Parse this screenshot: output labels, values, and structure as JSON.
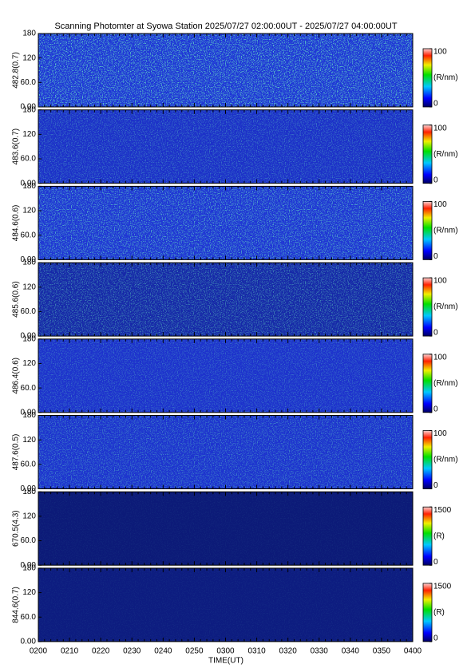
{
  "chart_data": {
    "type": "heatmap",
    "title": "Scanning Photomter at Syowa Station 2025/07/27 02:00:00UT - 2025/07/27 04:00:00UT",
    "xlabel": "TIME(UT)",
    "xticks": [
      "0200",
      "0210",
      "0220",
      "0230",
      "0240",
      "0250",
      "0300",
      "0310",
      "0320",
      "0330",
      "0340",
      "0350",
      "0400"
    ],
    "panels": [
      {
        "ylabel": "482.8(0.7)",
        "ylim": [
          0,
          180
        ],
        "yticks": [
          {
            "value": 0,
            "label": "0.00"
          },
          {
            "value": 60,
            "label": "60.0"
          },
          120,
          180
        ],
        "background": "#1f36d6",
        "speckle": 0.75,
        "colorbar": {
          "lim": [
            0,
            100
          ],
          "ticks": [
            0,
            100
          ],
          "label": "(R/nm)"
        }
      },
      {
        "ylabel": "483.6(0.7)",
        "ylim": [
          0,
          180
        ],
        "yticks": [
          {
            "value": 0,
            "label": "0.00"
          },
          {
            "value": 60,
            "label": "60.0"
          },
          120,
          180
        ],
        "background": "#1c30c8",
        "speckle": 0.35,
        "colorbar": {
          "lim": [
            0,
            100
          ],
          "ticks": [
            0,
            100
          ],
          "label": "(R/nm)"
        }
      },
      {
        "ylabel": "484.6(0.6)",
        "ylim": [
          0,
          180
        ],
        "yticks": [
          {
            "value": 0,
            "label": "0.00"
          },
          {
            "value": 60,
            "label": "60.0"
          },
          120,
          180
        ],
        "background": "#1f35d4",
        "speckle": 0.6,
        "colorbar": {
          "lim": [
            0,
            100
          ],
          "ticks": [
            0,
            100
          ],
          "label": "(R/nm)"
        }
      },
      {
        "ylabel": "485.6(0.6)",
        "ylim": [
          0,
          180
        ],
        "yticks": [
          {
            "value": 0,
            "label": "0.00"
          },
          {
            "value": 60,
            "label": "60.0"
          },
          120,
          180
        ],
        "background": "#1628a8",
        "speckle": 0.45,
        "colorbar": {
          "lim": [
            0,
            100
          ],
          "ticks": [
            0,
            100
          ],
          "label": "(R/nm)"
        }
      },
      {
        "ylabel": "486.4(0.6)",
        "ylim": [
          0,
          180
        ],
        "yticks": [
          {
            "value": 0,
            "label": "0.00"
          },
          {
            "value": 60,
            "label": "60.0"
          },
          120,
          180
        ],
        "background": "#1d32cc",
        "speckle": 0.3,
        "colorbar": {
          "lim": [
            0,
            100
          ],
          "ticks": [
            0,
            100
          ],
          "label": "(R/nm)"
        }
      },
      {
        "ylabel": "487.6(0.5)",
        "ylim": [
          0,
          180
        ],
        "yticks": [
          {
            "value": 0,
            "label": "0.00"
          },
          {
            "value": 60,
            "label": "60.0"
          },
          120,
          180
        ],
        "background": "#1d33ce",
        "speckle": 0.4,
        "colorbar": {
          "lim": [
            0,
            100
          ],
          "ticks": [
            0,
            100
          ],
          "label": "(R/nm)"
        }
      },
      {
        "ylabel": "670.5(4.3)",
        "ylim": [
          0,
          180
        ],
        "yticks": [
          {
            "value": 0,
            "label": "0.00"
          },
          {
            "value": 60,
            "label": "60.0"
          },
          120,
          180
        ],
        "background": "#0c1a78",
        "speckle": 0.05,
        "colorbar": {
          "lim": [
            0,
            1500
          ],
          "ticks": [
            0,
            1500
          ],
          "label": "(R)"
        }
      },
      {
        "ylabel": "844.6(0.7)",
        "ylim": [
          0,
          180
        ],
        "yticks": [
          {
            "value": 0,
            "label": "0.00"
          },
          {
            "value": 60,
            "label": "60.0"
          },
          120,
          180
        ],
        "background": "#0d1c80",
        "speckle": 0.05,
        "colorbar": {
          "lim": [
            0,
            1500
          ],
          "ticks": [
            0,
            1500
          ],
          "label": "(R)"
        }
      }
    ]
  }
}
